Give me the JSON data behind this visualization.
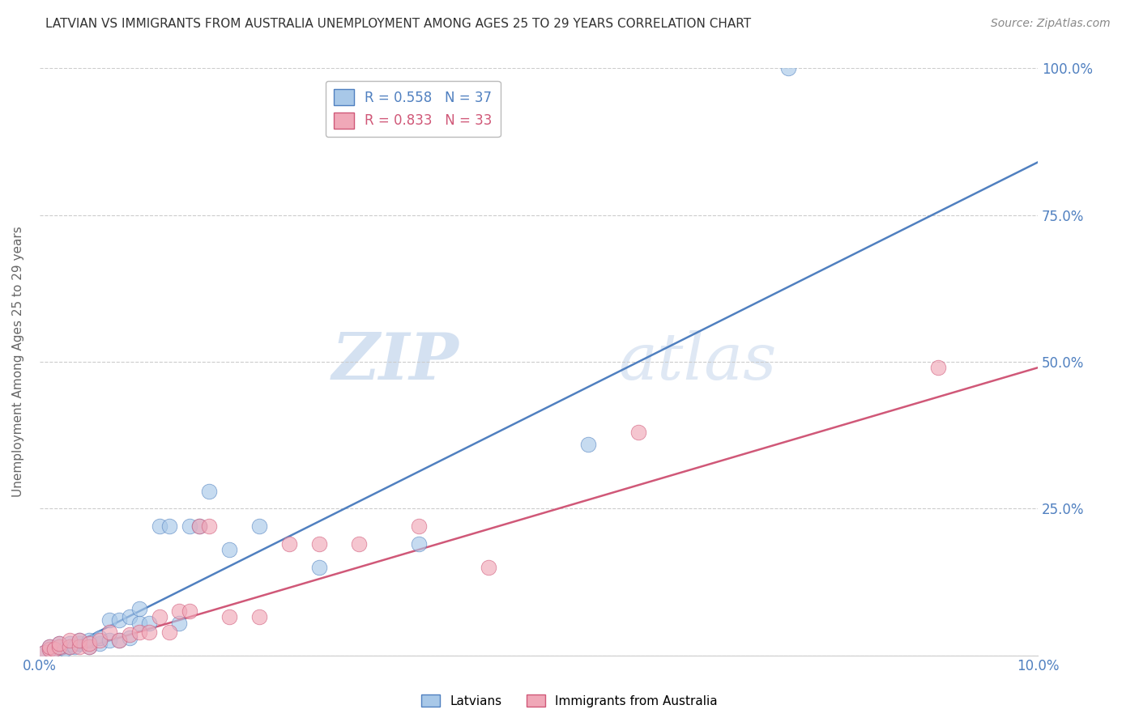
{
  "title": "LATVIAN VS IMMIGRANTS FROM AUSTRALIA UNEMPLOYMENT AMONG AGES 25 TO 29 YEARS CORRELATION CHART",
  "source": "Source: ZipAtlas.com",
  "ylabel": "Unemployment Among Ages 25 to 29 years",
  "xlim": [
    0,
    0.1
  ],
  "ylim": [
    0,
    1.0
  ],
  "yticks": [
    0.0,
    0.25,
    0.5,
    0.75,
    1.0
  ],
  "ytick_labels": [
    "",
    "25.0%",
    "50.0%",
    "75.0%",
    "100.0%"
  ],
  "latvian_R": 0.558,
  "latvian_N": 37,
  "australia_R": 0.833,
  "australia_N": 33,
  "latvian_color": "#A8C8E8",
  "australia_color": "#F0A8B8",
  "latvian_line_color": "#5080C0",
  "australia_line_color": "#D05878",
  "watermark_zip": "ZIP",
  "watermark_atlas": "atlas",
  "latvian_x": [
    0.0005,
    0.001,
    0.001,
    0.0015,
    0.002,
    0.002,
    0.0025,
    0.003,
    0.003,
    0.0035,
    0.004,
    0.004,
    0.005,
    0.005,
    0.006,
    0.006,
    0.007,
    0.007,
    0.008,
    0.008,
    0.009,
    0.009,
    0.01,
    0.01,
    0.011,
    0.012,
    0.013,
    0.014,
    0.015,
    0.016,
    0.017,
    0.019,
    0.022,
    0.028,
    0.038,
    0.055,
    0.075
  ],
  "latvian_y": [
    0.005,
    0.01,
    0.015,
    0.01,
    0.015,
    0.02,
    0.01,
    0.015,
    0.02,
    0.015,
    0.02,
    0.025,
    0.015,
    0.025,
    0.02,
    0.03,
    0.025,
    0.06,
    0.025,
    0.06,
    0.03,
    0.065,
    0.055,
    0.08,
    0.055,
    0.22,
    0.22,
    0.055,
    0.22,
    0.22,
    0.28,
    0.18,
    0.22,
    0.15,
    0.19,
    0.36,
    1.0
  ],
  "australia_x": [
    0.0005,
    0.001,
    0.001,
    0.0015,
    0.002,
    0.002,
    0.003,
    0.003,
    0.004,
    0.004,
    0.005,
    0.005,
    0.006,
    0.007,
    0.008,
    0.009,
    0.01,
    0.011,
    0.012,
    0.013,
    0.014,
    0.015,
    0.016,
    0.017,
    0.019,
    0.022,
    0.025,
    0.028,
    0.032,
    0.038,
    0.045,
    0.06,
    0.09
  ],
  "australia_y": [
    0.005,
    0.01,
    0.015,
    0.01,
    0.015,
    0.02,
    0.015,
    0.025,
    0.015,
    0.025,
    0.015,
    0.02,
    0.025,
    0.04,
    0.025,
    0.035,
    0.04,
    0.04,
    0.065,
    0.04,
    0.075,
    0.075,
    0.22,
    0.22,
    0.065,
    0.065,
    0.19,
    0.19,
    0.19,
    0.22,
    0.15,
    0.38,
    0.49
  ],
  "background_color": "#FFFFFF",
  "grid_color": "#CCCCCC",
  "tick_color": "#5080C0",
  "title_color": "#333333",
  "source_color": "#888888",
  "ylabel_color": "#666666"
}
